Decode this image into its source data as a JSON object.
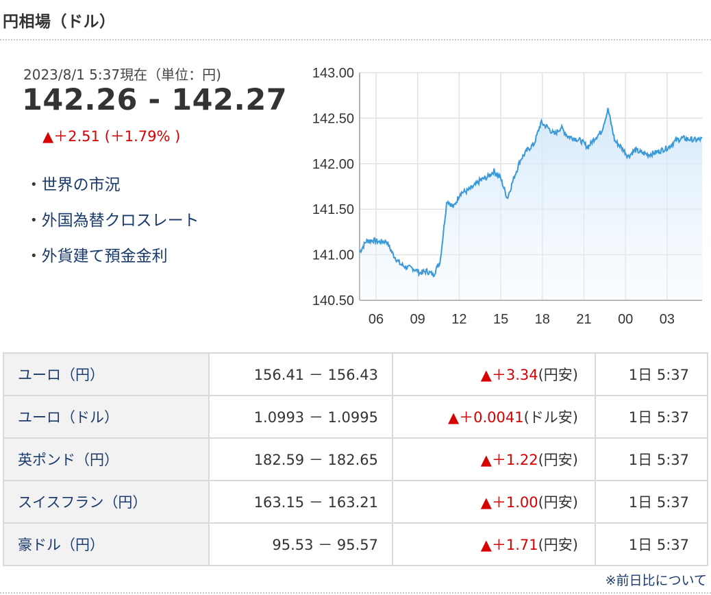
{
  "header": {
    "title": "円相場（ドル）"
  },
  "summary": {
    "timestamp": "2023/8/1 5:37現在（単位：円)",
    "rate": "142.26 - 142.27",
    "change": "▲＋2.51 (＋1.79% )"
  },
  "links": [
    {
      "label": "世界の市況"
    },
    {
      "label": "外国為替クロスレート"
    },
    {
      "label": "外貨建て預金金利"
    }
  ],
  "chart_data": {
    "type": "line",
    "title": "",
    "xlabel": "",
    "ylabel": "",
    "x": [
      "05:00",
      "05:30",
      "06:00",
      "06:30",
      "07:00",
      "07:30",
      "08:00",
      "08:30",
      "09:00",
      "09:30",
      "10:00",
      "10:20",
      "10:40",
      "11:00",
      "11:30",
      "12:00",
      "12:30",
      "13:00",
      "13:30",
      "14:00",
      "14:30",
      "15:00",
      "15:20",
      "15:40",
      "16:00",
      "16:30",
      "17:00",
      "17:30",
      "18:00",
      "18:30",
      "19:00",
      "19:30",
      "20:00",
      "20:30",
      "21:00",
      "21:30",
      "22:00",
      "22:30",
      "23:00",
      "23:30",
      "00:00",
      "00:30",
      "01:00",
      "01:30",
      "02:00",
      "02:30",
      "03:00",
      "03:30",
      "04:00",
      "04:30",
      "05:00",
      "05:37"
    ],
    "series": [
      {
        "values": [
          141.03,
          141.15,
          141.16,
          141.14,
          141.15,
          141.0,
          140.9,
          140.86,
          140.85,
          140.8,
          140.82,
          140.78,
          140.93,
          141.6,
          141.52,
          141.68,
          141.7,
          141.75,
          141.82,
          141.85,
          141.92,
          141.84,
          141.62,
          141.85,
          142.05,
          142.15,
          142.22,
          142.45,
          142.4,
          142.32,
          142.4,
          142.3,
          142.28,
          142.25,
          142.18,
          142.28,
          142.35,
          142.6,
          142.25,
          142.18,
          142.08,
          142.15,
          142.12,
          142.1,
          142.12,
          142.15,
          142.18,
          142.25,
          142.28,
          142.27,
          142.26,
          142.27
        ]
      }
    ],
    "y_ticks": [
      "143.00",
      "142.50",
      "142.00",
      "141.50",
      "141.00",
      "140.50"
    ],
    "x_ticks": [
      "06",
      "09",
      "12",
      "15",
      "18",
      "21",
      "00",
      "03"
    ],
    "ylim": [
      140.5,
      143.0
    ],
    "grid": true,
    "line_color": "#3a9ad9"
  },
  "table": {
    "rows": [
      {
        "name": "ユーロ（円）",
        "value": "156.41 － 156.43",
        "change": "▲＋3.34",
        "note": "(円安)",
        "time": "1日 5:37"
      },
      {
        "name": "ユーロ（ドル）",
        "value": "1.0993 － 1.0995",
        "change": "▲＋0.0041",
        "note": "(ドル安)",
        "time": "1日 5:37"
      },
      {
        "name": "英ポンド（円）",
        "value": "182.59 － 182.65",
        "change": "▲＋1.22",
        "note": "(円安)",
        "time": "1日 5:37"
      },
      {
        "name": "スイスフラン（円）",
        "value": "163.15 － 163.21",
        "change": "▲＋1.00",
        "note": "(円安)",
        "time": "1日 5:37"
      },
      {
        "name": "豪ドル（円）",
        "value": "95.53 － 95.57",
        "change": "▲＋1.71",
        "note": "(円安)",
        "time": "1日 5:37"
      }
    ]
  },
  "footnote": "※前日比について"
}
